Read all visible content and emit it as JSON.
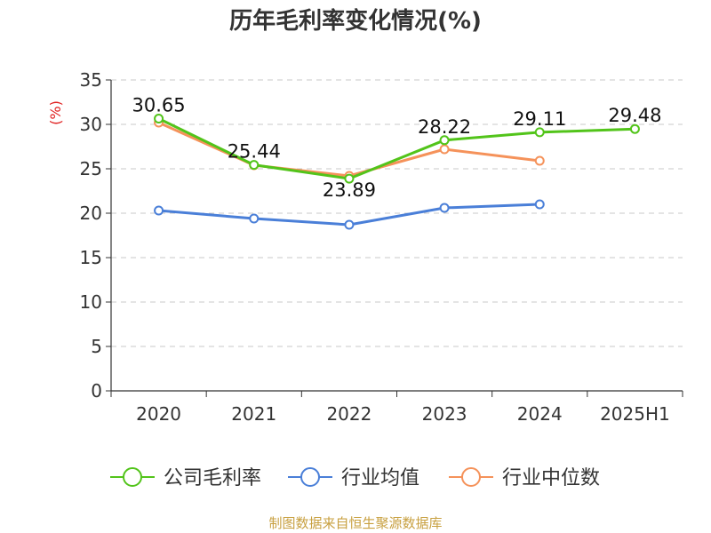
{
  "chart_data": {
    "type": "line",
    "title": "历年毛利率变化情况(%)",
    "ylabel": "(%)",
    "categories": [
      "2020",
      "2021",
      "2022",
      "2023",
      "2024",
      "2025H1"
    ],
    "ylim": [
      0,
      35
    ],
    "yticks": [
      0,
      5,
      10,
      15,
      20,
      25,
      30,
      35
    ],
    "grid": true,
    "legend_position": "bottom",
    "series": [
      {
        "name": "公司毛利率",
        "color": "#52c41a",
        "values": [
          30.65,
          25.44,
          23.89,
          28.22,
          29.11,
          29.48
        ],
        "labels": [
          "30.65",
          "25.44",
          "23.89",
          "28.22",
          "29.11",
          "29.48"
        ]
      },
      {
        "name": "行业均值",
        "color": "#4a7fd8",
        "values": [
          20.3,
          19.4,
          18.7,
          20.6,
          21.0,
          null
        ]
      },
      {
        "name": "行业中位数",
        "color": "#f5925a",
        "values": [
          30.2,
          25.4,
          24.2,
          27.2,
          25.9,
          null
        ]
      }
    ]
  },
  "footer": {
    "source": "制图数据来自恒生聚源数据库"
  }
}
